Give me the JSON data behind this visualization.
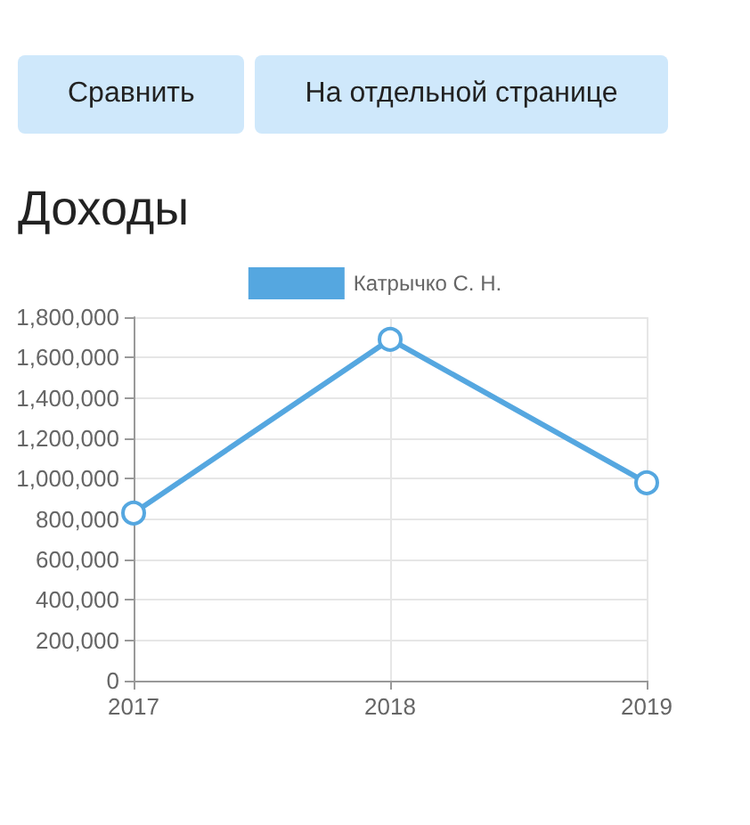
{
  "chart_data": {
    "type": "line",
    "title": "Доходы",
    "annotations": [
      "Сравнить",
      "На отдельной странице"
    ],
    "categories": [
      "2017",
      "2018",
      "2019"
    ],
    "series": [
      {
        "name": "Катрычко С. Н.",
        "color": "#55a7e0",
        "values": [
          830000,
          1690000,
          980000
        ]
      }
    ],
    "ylim": [
      0,
      1800000
    ],
    "yticks": [
      {
        "value": 0,
        "label": "0"
      },
      {
        "value": 200000,
        "label": "200,000"
      },
      {
        "value": 400000,
        "label": "400,000"
      },
      {
        "value": 600000,
        "label": "600,000"
      },
      {
        "value": 800000,
        "label": "800,000"
      },
      {
        "value": 1000000,
        "label": "1,000,000"
      },
      {
        "value": 1200000,
        "label": "1,200,000"
      },
      {
        "value": 1400000,
        "label": "1,400,000"
      },
      {
        "value": 1600000,
        "label": "1,600,000"
      },
      {
        "value": 1800000,
        "label": "1,800,000"
      }
    ],
    "grid": true,
    "legend": "top",
    "marker": "circle",
    "line_style": "solid"
  }
}
